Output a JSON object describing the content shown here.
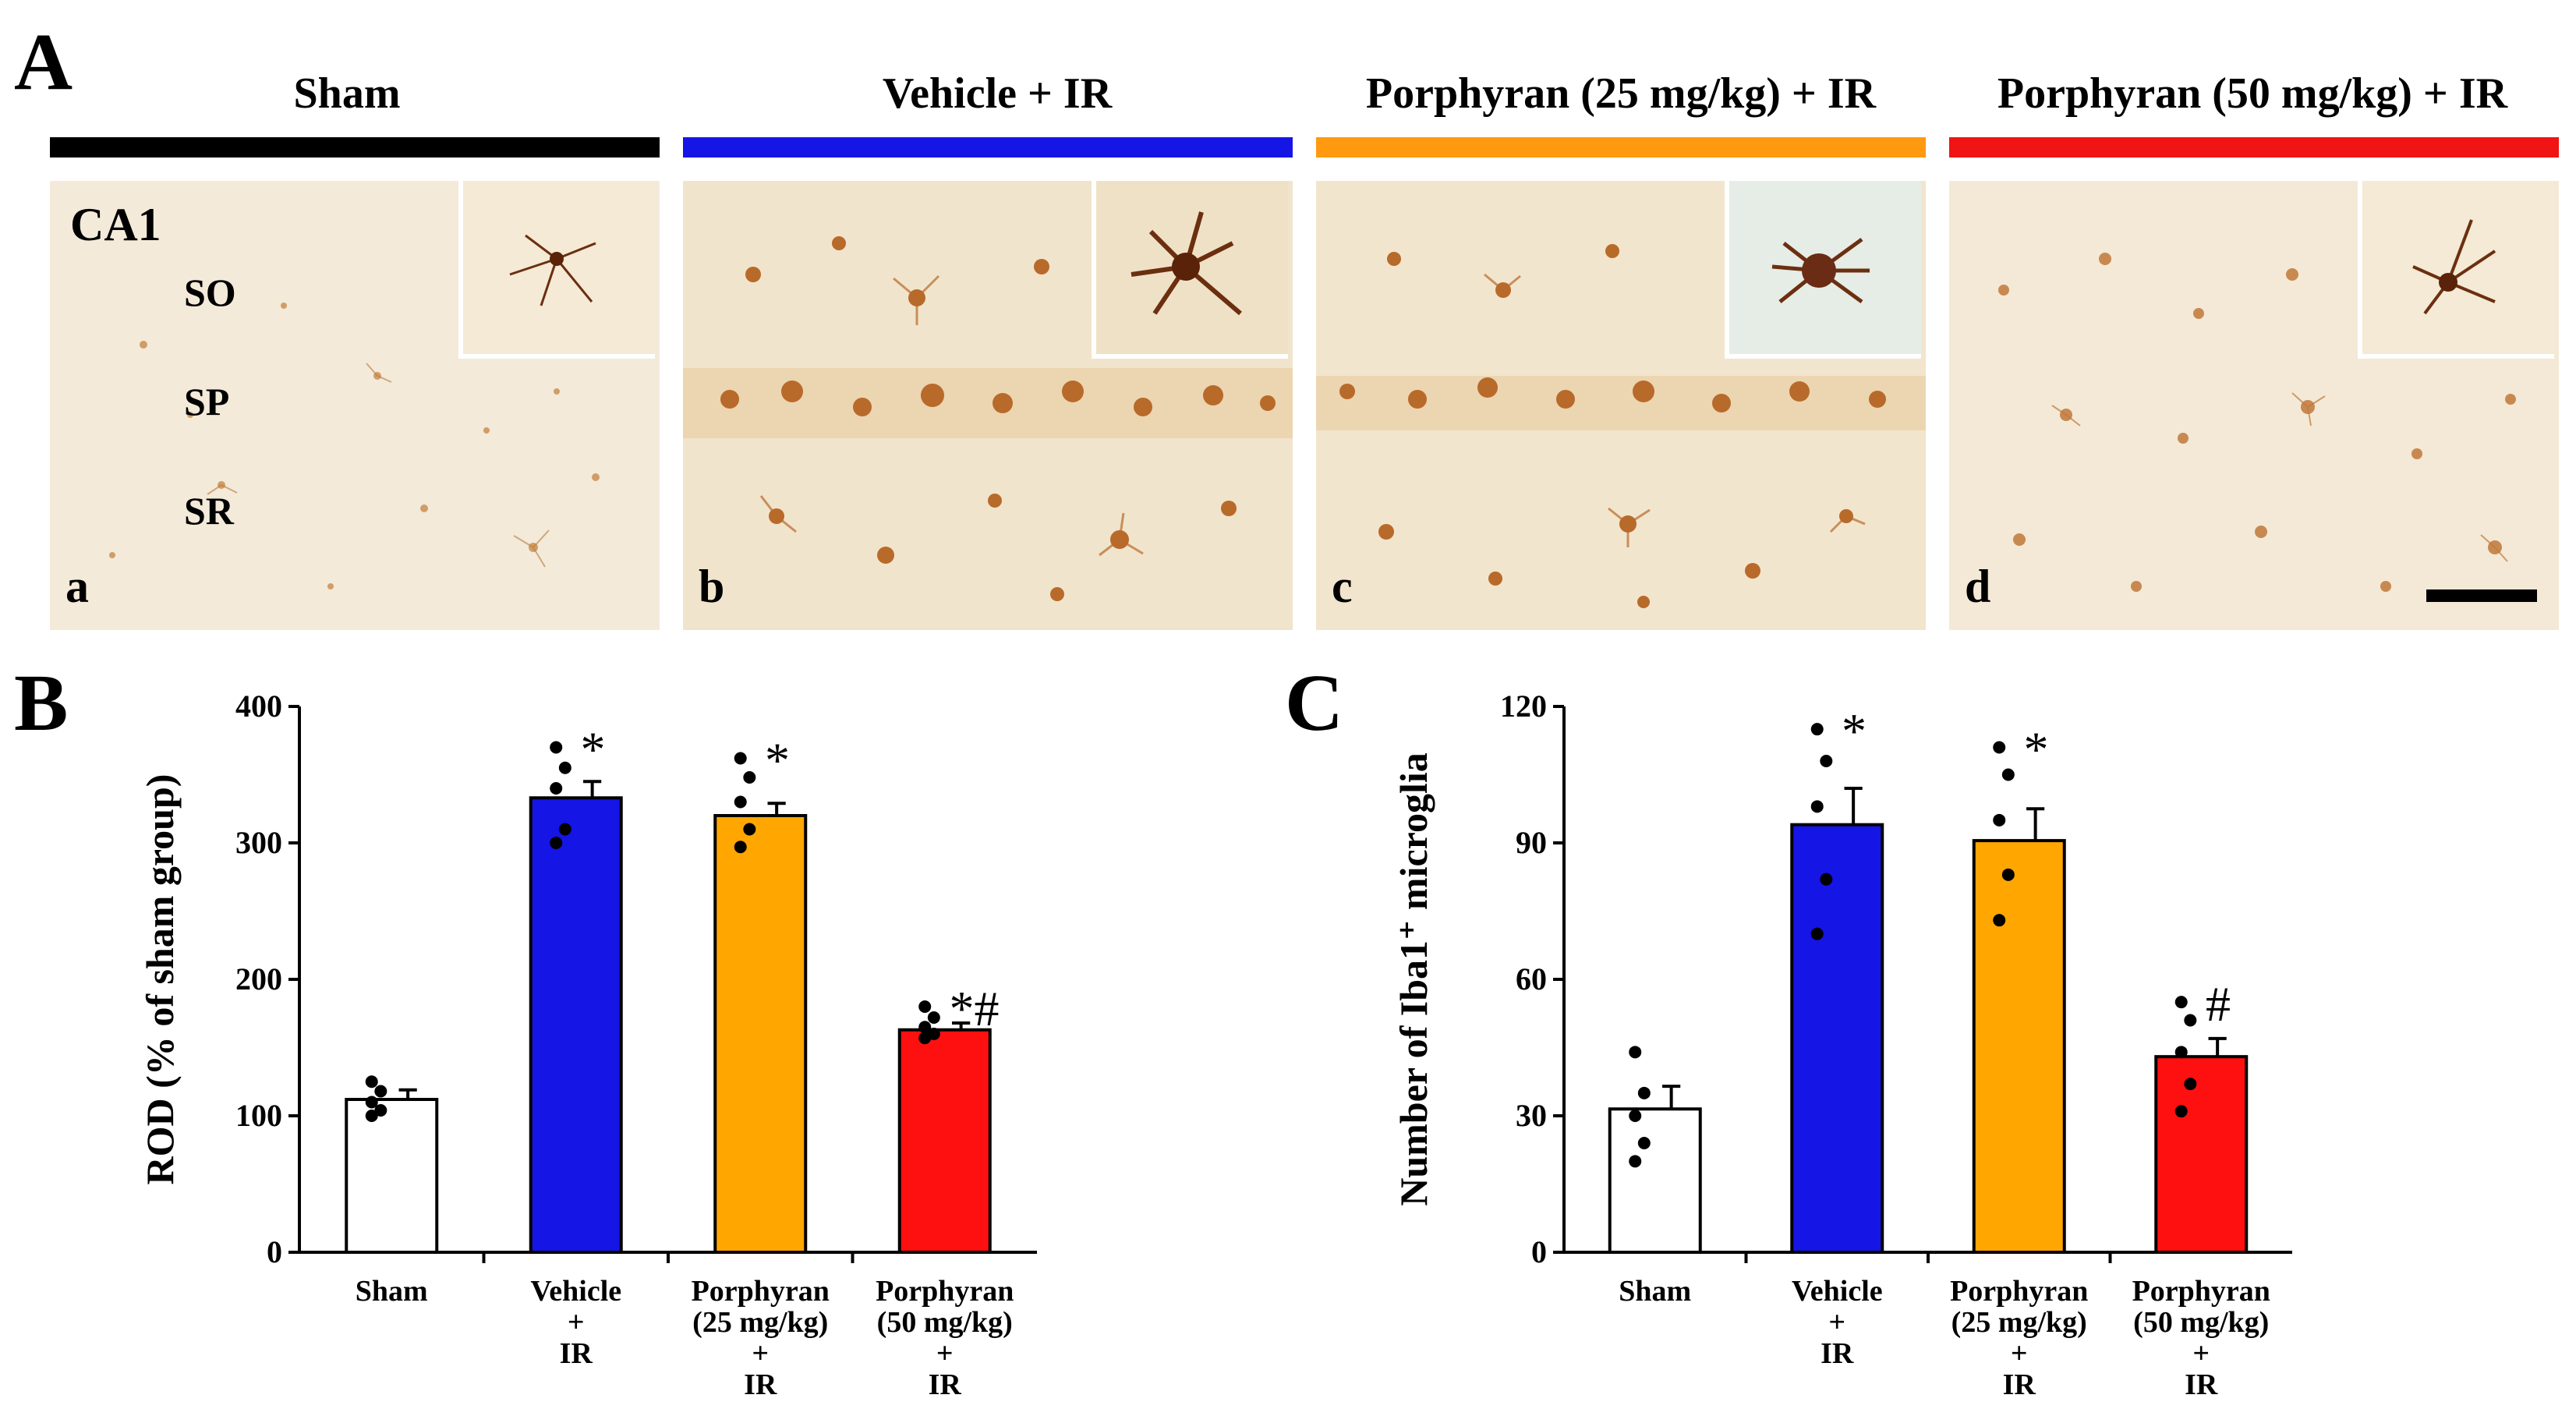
{
  "panel_a": {
    "letter": "A",
    "groups": [
      {
        "header": "Sham",
        "color": "#000000",
        "sub_label": "a"
      },
      {
        "header": "Vehicle + IR",
        "color": "#1515e6",
        "sub_label": "b"
      },
      {
        "header": "Porphyran (25 mg/kg) + IR",
        "color": "#ff9a10",
        "sub_label": "c"
      },
      {
        "header": "Porphyran (50 mg/kg) + IR",
        "color": "#f01414",
        "sub_label": "d"
      }
    ],
    "region_label": "CA1",
    "layer_labels": [
      "SO",
      "SP",
      "SR"
    ]
  },
  "chart_data": [
    {
      "panel": "B",
      "type": "bar",
      "ylabel": "ROD (% of sham group)",
      "ylim": [
        0,
        400
      ],
      "yticks": [
        0,
        100,
        200,
        300,
        400
      ],
      "categories": [
        [
          "Sham"
        ],
        [
          "Vehicle",
          "+",
          "IR"
        ],
        [
          "Porphyran",
          "(25 mg/kg)",
          "+",
          "IR"
        ],
        [
          "Porphyran",
          "(50 mg/kg)",
          "+",
          "IR"
        ]
      ],
      "values": [
        112,
        333,
        320,
        163
      ],
      "errors": [
        7,
        12,
        9,
        5
      ],
      "colors": [
        "#ffffff",
        "#1515e6",
        "#ffa600",
        "#ff1010"
      ],
      "annotations": [
        "",
        "*",
        "*",
        "*#"
      ],
      "points": [
        [
          125,
          118,
          110,
          104,
          100
        ],
        [
          370,
          355,
          340,
          310,
          300
        ],
        [
          362,
          348,
          330,
          310,
          297
        ],
        [
          180,
          172,
          165,
          160,
          157
        ]
      ]
    },
    {
      "panel": "C",
      "type": "bar",
      "ylabel": "Number of Iba1⁺ microglia",
      "ylim": [
        0,
        120
      ],
      "yticks": [
        0,
        30,
        60,
        90,
        120
      ],
      "categories": [
        [
          "Sham"
        ],
        [
          "Vehicle",
          "+",
          "IR"
        ],
        [
          "Porphyran",
          "(25 mg/kg)",
          "+",
          "IR"
        ],
        [
          "Porphyran",
          "(50 mg/kg)",
          "+",
          "IR"
        ]
      ],
      "values": [
        31.5,
        94,
        90.5,
        43
      ],
      "errors": [
        5,
        8,
        7,
        4
      ],
      "colors": [
        "#ffffff",
        "#1515e6",
        "#ffa600",
        "#ff1010"
      ],
      "annotations": [
        "",
        "*",
        "*",
        "#"
      ],
      "points": [
        [
          44,
          35,
          30,
          24,
          20
        ],
        [
          115,
          108,
          98,
          82,
          70
        ],
        [
          111,
          105,
          95,
          83,
          73
        ],
        [
          55,
          51,
          44,
          37,
          31
        ]
      ]
    }
  ]
}
